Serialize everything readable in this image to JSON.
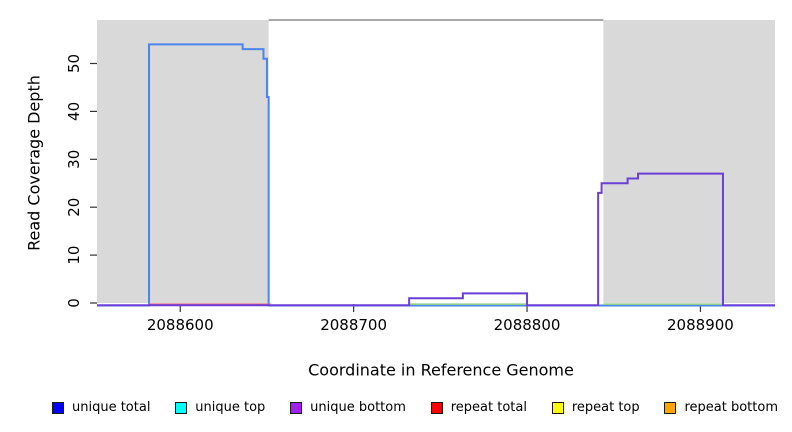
{
  "chart_data": {
    "type": "line",
    "title": "",
    "xlabel": "Coordinate in Reference Genome",
    "ylabel": "Read Coverage Depth",
    "x_range": [
      2088552,
      2088943
    ],
    "y_range": [
      0,
      57
    ],
    "x_ticks": [
      2088600,
      2088700,
      2088800,
      2088900
    ],
    "y_ticks": [
      0,
      10,
      20,
      30,
      40,
      50
    ],
    "grid": false,
    "shaded_regions": [
      {
        "name": "left-shaded-region",
        "from": 2088552,
        "to": 2088651,
        "color": "#d9d9d9"
      },
      {
        "name": "right-shaded-region",
        "from": 2088844,
        "to": 2088943,
        "color": "#d9d9d9"
      }
    ],
    "top_border": {
      "from": 2088651,
      "to": 2088844,
      "color": "#8c8c8c"
    },
    "series": [
      {
        "name": "unique total",
        "line_color": "#4b85ec",
        "steps": [
          [
            2088552,
            0
          ],
          [
            2088582,
            54
          ],
          [
            2088636,
            53
          ],
          [
            2088648,
            51
          ],
          [
            2088650,
            43
          ],
          [
            2088651,
            0
          ]
        ]
      },
      {
        "name": "unique bottom",
        "line_color": "#6a3fd8",
        "steps": [
          [
            2088552,
            0
          ],
          [
            2088732,
            1
          ],
          [
            2088763,
            2
          ],
          [
            2088800,
            0
          ],
          [
            2088841,
            23
          ],
          [
            2088843,
            25
          ],
          [
            2088858,
            26
          ],
          [
            2088864,
            27
          ],
          [
            2088913,
            0
          ]
        ]
      }
    ],
    "baseline_segments": [
      {
        "name": "repeat total",
        "color": "#e05f7a",
        "value": 0,
        "from": 2088582,
        "to": 2088652
      },
      {
        "name": "top strand coverage",
        "color": "#8ecf8e",
        "value": 0,
        "from": 2088732,
        "to": 2088800
      },
      {
        "name": "top strand coverage",
        "color": "#8ecf8e",
        "value": 0,
        "from": 2088844,
        "to": 2088913
      }
    ]
  },
  "legend": {
    "items": [
      {
        "label": "unique total",
        "color": "#0000ff"
      },
      {
        "label": "unique top",
        "color": "#00ffff"
      },
      {
        "label": "unique bottom",
        "color": "#a020f0"
      },
      {
        "label": "repeat total",
        "color": "#ff0000"
      },
      {
        "label": "repeat top",
        "color": "#ffff00"
      },
      {
        "label": "repeat bottom",
        "color": "#ffa500"
      }
    ]
  }
}
